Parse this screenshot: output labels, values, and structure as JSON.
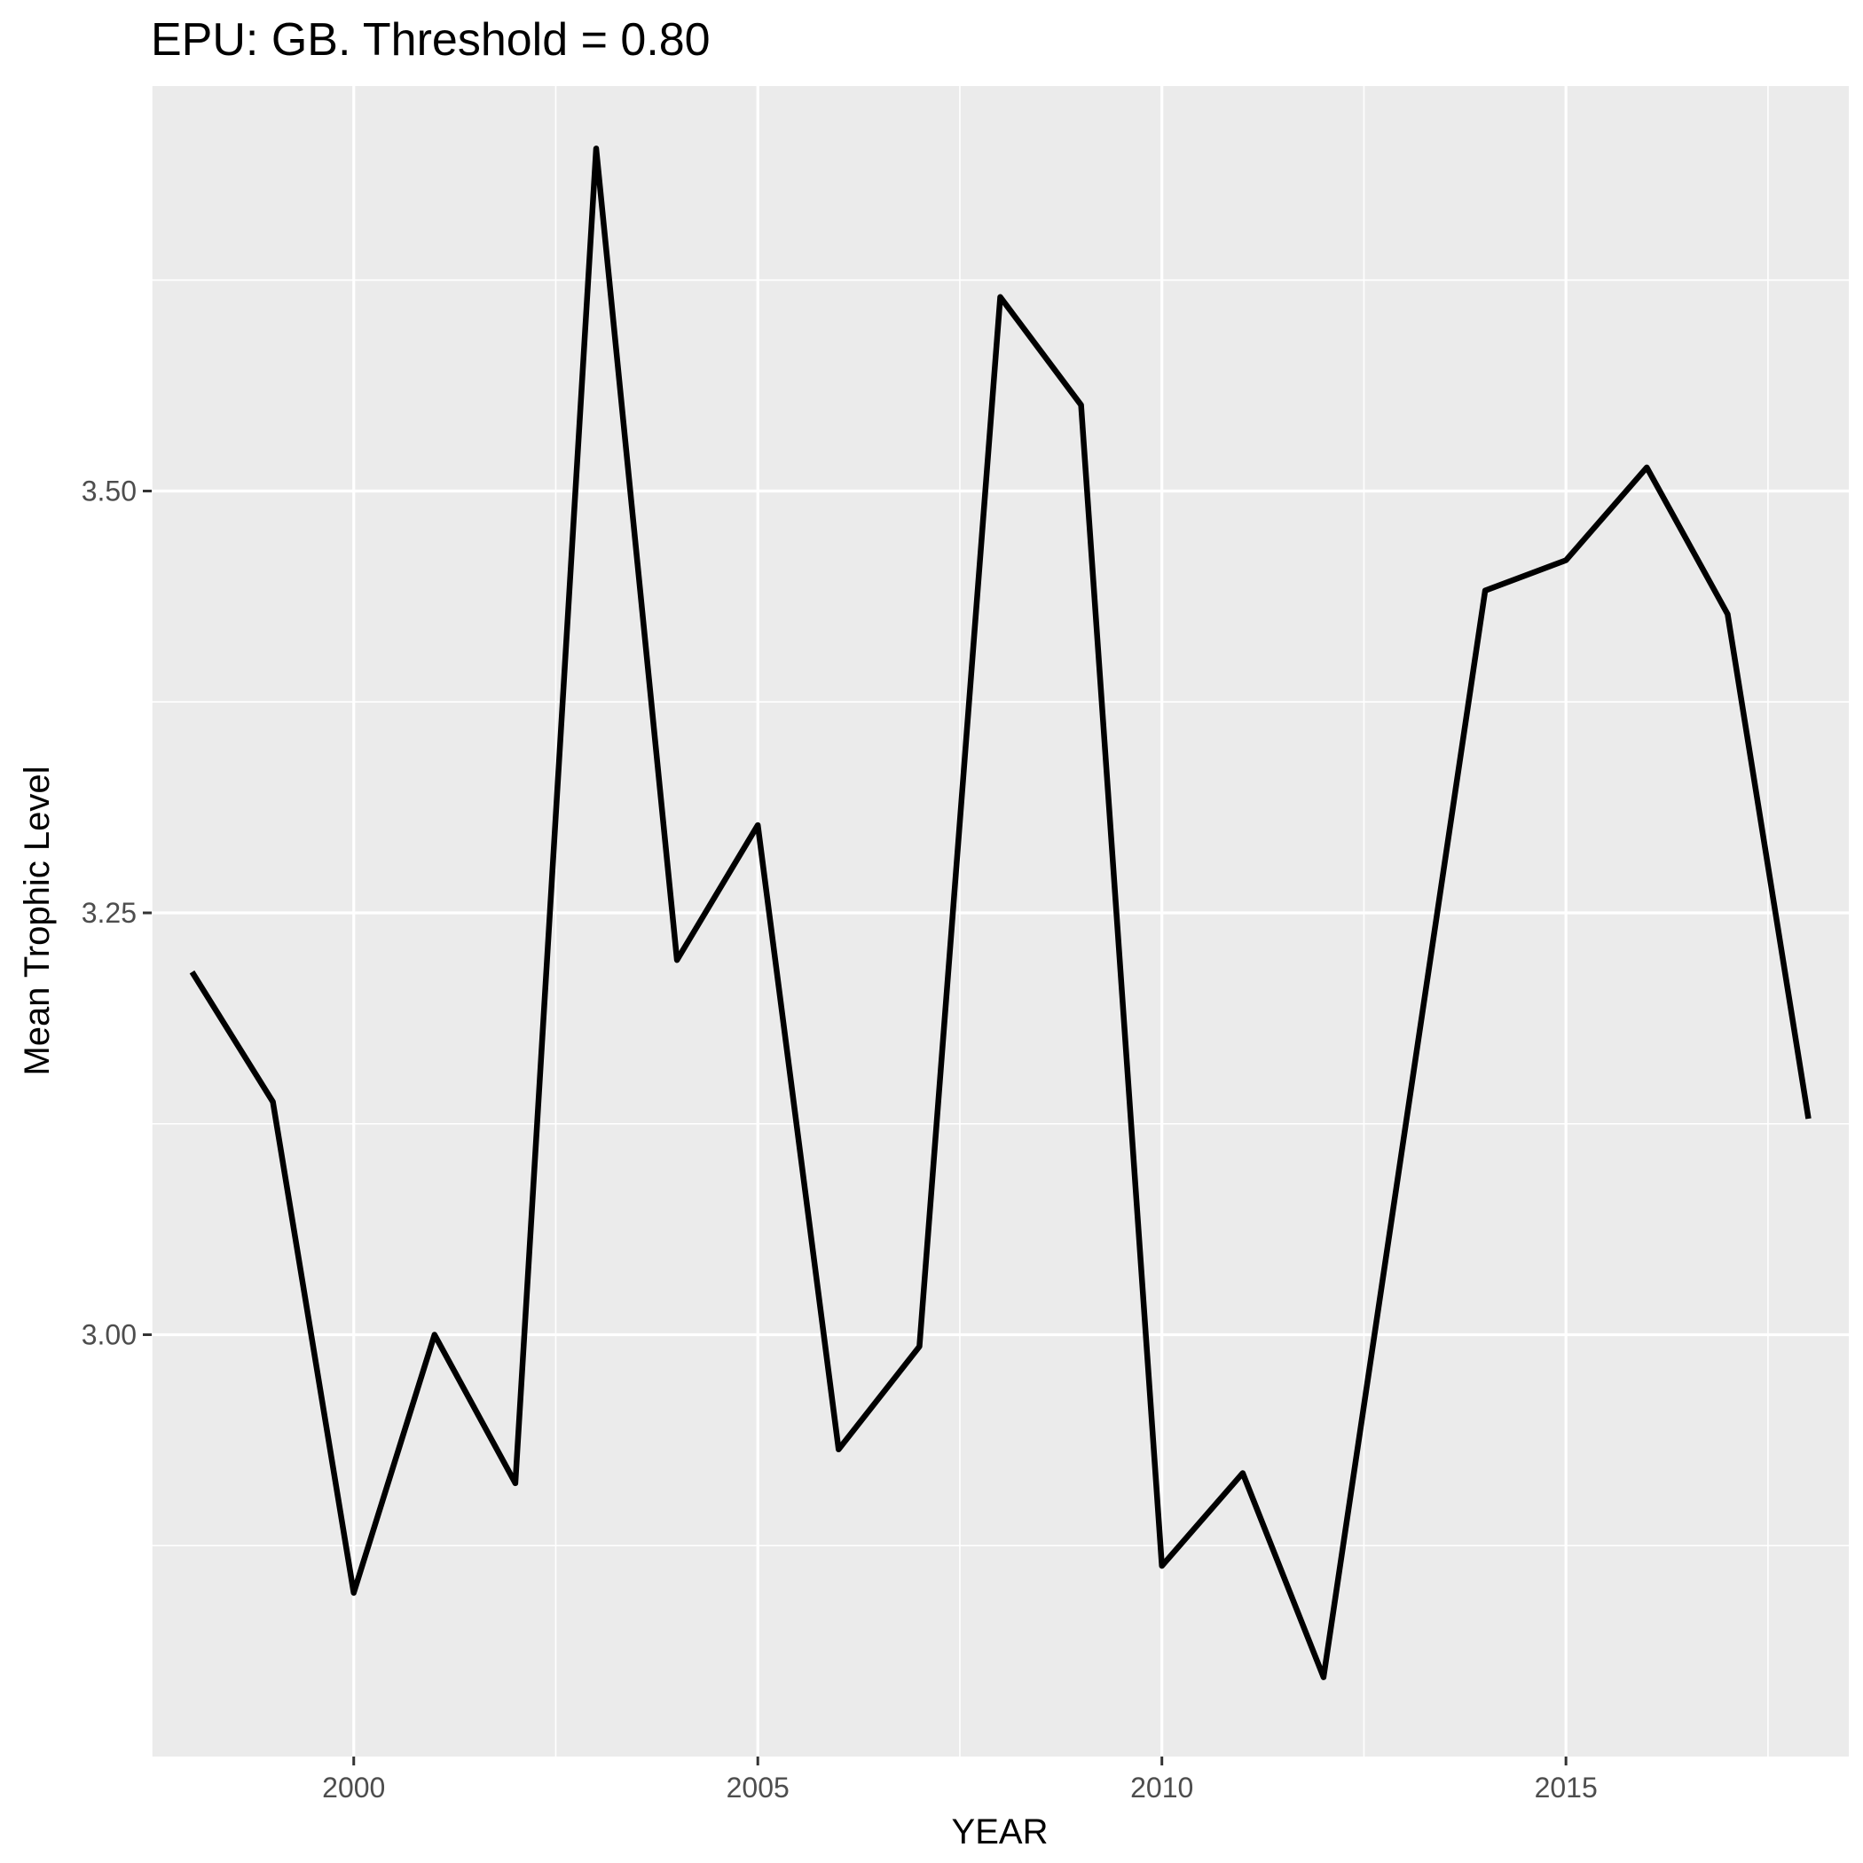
{
  "chart_data": {
    "type": "line",
    "title": "EPU: GB. Threshold = 0.80",
    "xlabel": "YEAR",
    "ylabel": "Mean Trophic Level",
    "xlim": [
      1997.5,
      2018.5
    ],
    "ylim": [
      2.75,
      3.74
    ],
    "x_ticks": [
      {
        "value": 2000,
        "label": "2000"
      },
      {
        "value": 2005,
        "label": "2005"
      },
      {
        "value": 2010,
        "label": "2010"
      },
      {
        "value": 2015,
        "label": "2015"
      }
    ],
    "y_ticks": [
      {
        "value": 3.0,
        "label": "3.00"
      },
      {
        "value": 3.25,
        "label": "3.25"
      },
      {
        "value": 3.5,
        "label": "3.50"
      }
    ],
    "grid": true,
    "background": "#ebebeb",
    "grid_color": "#ffffff",
    "line_color": "#000000",
    "series": [
      {
        "x": [
          1998,
          1999,
          2000,
          2001,
          2002,
          2003,
          2004,
          2005,
          2006,
          2007,
          2008,
          2009,
          2010,
          2011,
          2012,
          2013,
          2014,
          2015,
          2016,
          2017,
          2018
        ],
        "values": [
          3.215,
          3.138,
          2.847,
          3.0,
          2.912,
          3.703,
          3.222,
          3.302,
          2.932,
          2.993,
          3.615,
          3.551,
          2.863,
          2.918,
          2.797,
          3.119,
          3.441,
          3.459,
          3.514,
          3.427,
          3.128
        ]
      }
    ]
  }
}
